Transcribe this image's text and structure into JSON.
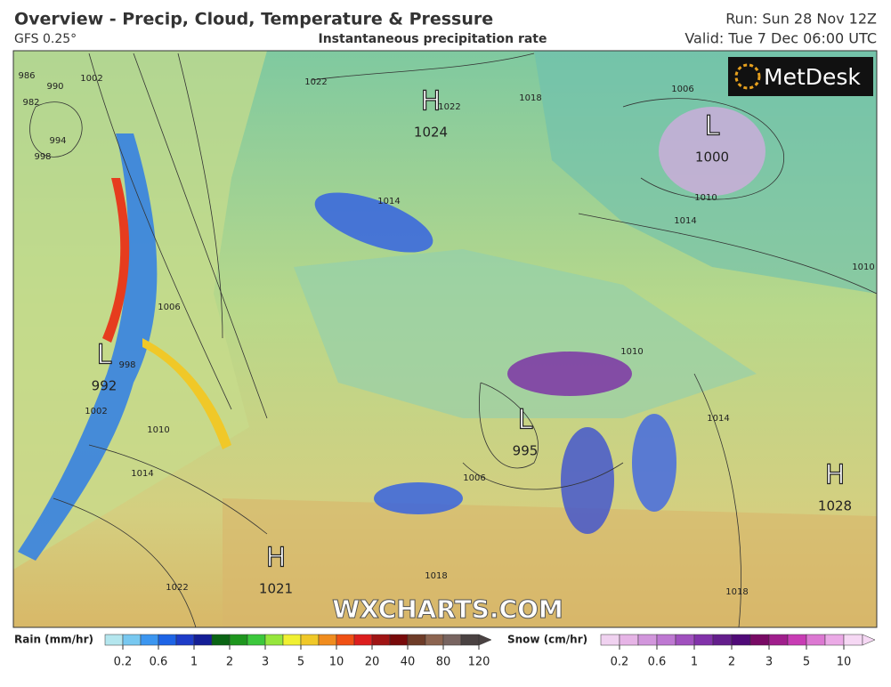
{
  "header": {
    "title": "Overview - Precip, Cloud, Temperature & Pressure",
    "model": "GFS 0.25°",
    "subtitle": "Instantaneous precipitation rate",
    "run": "Run: Sun 28 Nov 12Z",
    "valid": "Valid: Tue 7 Dec 06:00 UTC"
  },
  "map": {
    "logo": "MetDesk",
    "watermark": "WXCHARTS.COM",
    "pressure_centers": [
      {
        "type": "H",
        "value": 1024
      },
      {
        "type": "L",
        "value": 1000
      },
      {
        "type": "L",
        "value": 992
      },
      {
        "type": "L",
        "value": 995
      },
      {
        "type": "H",
        "value": 1028
      },
      {
        "type": "H",
        "value": 1021
      }
    ],
    "isobar_labels": [
      986,
      990,
      982,
      994,
      998,
      1002,
      1022,
      1022,
      1018,
      1006,
      1014,
      1010,
      1014,
      1006,
      998,
      1002,
      1010,
      1014,
      1022,
      1006,
      1018,
      1018,
      1014,
      1010,
      1010
    ]
  },
  "legend": {
    "rain": {
      "label": "Rain (mm/hr)",
      "ticks": [
        0.2,
        0.6,
        1,
        2,
        3,
        5,
        10,
        20,
        40,
        80,
        120
      ],
      "colors": [
        "#b4e6ee",
        "#78c8f0",
        "#3c96f0",
        "#1e64e6",
        "#1e3cc8",
        "#141e96",
        "#0a6414",
        "#1e961e",
        "#3cc83c",
        "#96e63c",
        "#f0f032",
        "#f0c828",
        "#f08c1e",
        "#f05014",
        "#dc1e1e",
        "#a01414",
        "#780a0a",
        "#6e3c28",
        "#8c6450",
        "#786460",
        "#4a4242"
      ]
    },
    "snow": {
      "label": "Snow (cm/hr)",
      "ticks": [
        0.2,
        0.6,
        1,
        2,
        3,
        5,
        10
      ],
      "colors": [
        "#f0d2f0",
        "#e6b4e6",
        "#d296dc",
        "#be78d2",
        "#a050be",
        "#8232aa",
        "#641e8c",
        "#500a78",
        "#780a64",
        "#a01e8c",
        "#c83cb4",
        "#dc78d2",
        "#ebaae6",
        "#f6d8f4"
      ]
    }
  }
}
